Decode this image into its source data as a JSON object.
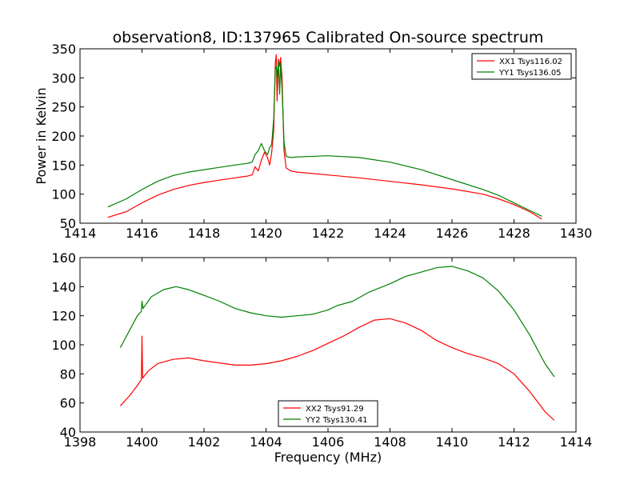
{
  "chart_data": [
    {
      "type": "line",
      "title": "observation8, ID:137965 Calibrated On-source spectrum",
      "xlabel": "",
      "ylabel": "Power in Kelvin",
      "xlim": [
        1414,
        1430
      ],
      "ylim": [
        50,
        350
      ],
      "xticks": [
        1414,
        1416,
        1418,
        1420,
        1422,
        1424,
        1426,
        1428,
        1430
      ],
      "yticks": [
        50,
        100,
        150,
        200,
        250,
        300,
        350
      ],
      "legend": "top-right",
      "grid": false,
      "series": [
        {
          "name": "XX1 Tsys116.02",
          "color": "#ff0000",
          "points": [
            [
              1414.9,
              60
            ],
            [
              1415.5,
              70
            ],
            [
              1416,
              85
            ],
            [
              1416.5,
              98
            ],
            [
              1417,
              108
            ],
            [
              1417.5,
              115
            ],
            [
              1418,
              120
            ],
            [
              1418.5,
              124
            ],
            [
              1419,
              128
            ],
            [
              1419.4,
              131
            ],
            [
              1419.55,
              133
            ],
            [
              1419.65,
              147
            ],
            [
              1419.75,
              140
            ],
            [
              1419.85,
              158
            ],
            [
              1419.95,
              172
            ],
            [
              1420.05,
              163
            ],
            [
              1420.12,
              150
            ],
            [
              1420.18,
              170
            ],
            [
              1420.25,
              210
            ],
            [
              1420.3,
              325
            ],
            [
              1420.33,
              340
            ],
            [
              1420.36,
              260
            ],
            [
              1420.4,
              332
            ],
            [
              1420.44,
              320
            ],
            [
              1420.47,
              335
            ],
            [
              1420.52,
              300
            ],
            [
              1420.58,
              175
            ],
            [
              1420.65,
              145
            ],
            [
              1420.8,
              140
            ],
            [
              1421,
              138
            ],
            [
              1422,
              133
            ],
            [
              1423,
              128
            ],
            [
              1424,
              122
            ],
            [
              1425,
              116
            ],
            [
              1426,
              109
            ],
            [
              1427,
              100
            ],
            [
              1427.5,
              92
            ],
            [
              1428,
              82
            ],
            [
              1428.5,
              70
            ],
            [
              1428.9,
              57
            ]
          ]
        },
        {
          "name": "YY1 Tsys136.05",
          "color": "#008000",
          "points": [
            [
              1414.9,
              78
            ],
            [
              1415.5,
              92
            ],
            [
              1416,
              108
            ],
            [
              1416.5,
              122
            ],
            [
              1417,
              132
            ],
            [
              1417.5,
              138
            ],
            [
              1418,
              142
            ],
            [
              1418.5,
              146
            ],
            [
              1419,
              150
            ],
            [
              1419.4,
              153
            ],
            [
              1419.55,
              155
            ],
            [
              1419.65,
              168
            ],
            [
              1419.75,
              175
            ],
            [
              1419.85,
              187
            ],
            [
              1419.95,
              175
            ],
            [
              1420.05,
              168
            ],
            [
              1420.12,
              180
            ],
            [
              1420.18,
              185
            ],
            [
              1420.25,
              230
            ],
            [
              1420.3,
              315
            ],
            [
              1420.33,
              320
            ],
            [
              1420.36,
              300
            ],
            [
              1420.4,
              328
            ],
            [
              1420.44,
              272
            ],
            [
              1420.47,
              325
            ],
            [
              1420.52,
              280
            ],
            [
              1420.58,
              190
            ],
            [
              1420.65,
              165
            ],
            [
              1420.8,
              163
            ],
            [
              1421,
              164
            ],
            [
              1422,
              166
            ],
            [
              1423,
              163
            ],
            [
              1424,
              155
            ],
            [
              1425,
              142
            ],
            [
              1426,
              125
            ],
            [
              1427,
              108
            ],
            [
              1427.5,
              98
            ],
            [
              1428,
              85
            ],
            [
              1428.5,
              72
            ],
            [
              1428.9,
              62
            ]
          ]
        }
      ]
    },
    {
      "type": "line",
      "title": "",
      "xlabel": "Frequency (MHz)",
      "ylabel": "",
      "xlim": [
        1398,
        1414
      ],
      "ylim": [
        40,
        160
      ],
      "xticks": [
        1398,
        1400,
        1402,
        1404,
        1406,
        1408,
        1410,
        1412,
        1414
      ],
      "yticks": [
        40,
        60,
        80,
        100,
        120,
        140,
        160
      ],
      "legend": "bottom-center",
      "grid": false,
      "series": [
        {
          "name": "XX2 Tsys91.29",
          "color": "#ff0000",
          "points": [
            [
              1399.3,
              58
            ],
            [
              1399.6,
              65
            ],
            [
              1399.85,
              72
            ],
            [
              1399.98,
              76
            ],
            [
              1400.0,
              106
            ],
            [
              1400.02,
              77
            ],
            [
              1400.2,
              82
            ],
            [
              1400.5,
              87
            ],
            [
              1401,
              90
            ],
            [
              1401.5,
              91
            ],
            [
              1402,
              89
            ],
            [
              1403,
              86
            ],
            [
              1403.5,
              86
            ],
            [
              1404,
              87
            ],
            [
              1404.5,
              89
            ],
            [
              1405,
              92
            ],
            [
              1405.5,
              96
            ],
            [
              1406,
              101
            ],
            [
              1406.5,
              106
            ],
            [
              1407,
              112
            ],
            [
              1407.5,
              117
            ],
            [
              1408,
              118
            ],
            [
              1408.5,
              115
            ],
            [
              1409,
              110
            ],
            [
              1409.5,
              103
            ],
            [
              1410,
              98
            ],
            [
              1410.5,
              94
            ],
            [
              1411,
              91
            ],
            [
              1411.5,
              87
            ],
            [
              1412,
              80
            ],
            [
              1412.5,
              68
            ],
            [
              1413,
              54
            ],
            [
              1413.3,
              48
            ]
          ]
        },
        {
          "name": "YY2 Tsys130.41",
          "color": "#008000",
          "points": [
            [
              1399.3,
              98
            ],
            [
              1399.6,
              110
            ],
            [
              1399.85,
              120
            ],
            [
              1399.98,
              123
            ],
            [
              1400.0,
              130
            ],
            [
              1400.03,
              125
            ],
            [
              1400.3,
              133
            ],
            [
              1400.7,
              138
            ],
            [
              1401.1,
              140
            ],
            [
              1401.5,
              138
            ],
            [
              1402,
              134
            ],
            [
              1402.5,
              130
            ],
            [
              1403,
              125
            ],
            [
              1403.5,
              122
            ],
            [
              1404,
              120
            ],
            [
              1404.5,
              119
            ],
            [
              1405,
              120
            ],
            [
              1405.5,
              121
            ],
            [
              1406,
              124
            ],
            [
              1406.3,
              127
            ],
            [
              1406.8,
              130
            ],
            [
              1407.3,
              136
            ],
            [
              1408,
              142
            ],
            [
              1408.5,
              147
            ],
            [
              1409,
              150
            ],
            [
              1409.5,
              153
            ],
            [
              1410,
              154
            ],
            [
              1410.5,
              151
            ],
            [
              1411,
              146
            ],
            [
              1411.5,
              137
            ],
            [
              1412,
              124
            ],
            [
              1412.5,
              107
            ],
            [
              1413,
              87
            ],
            [
              1413.3,
              78
            ]
          ]
        }
      ]
    }
  ]
}
